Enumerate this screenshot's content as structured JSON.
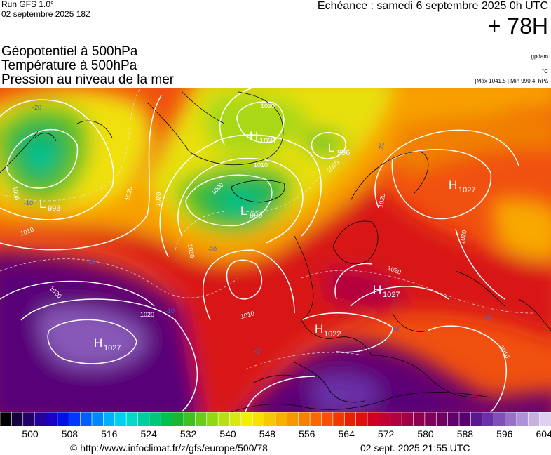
{
  "header": {
    "run_label": "Run GFS 1.0°",
    "run_date": "02 septembre 2025 18Z",
    "echeance": "Echéance : samedi 6 septembre 2025 0h UTC",
    "forecast_hour": "+ 78H"
  },
  "titles": {
    "line1": "Géopotentiel à 500hPa",
    "line2": "Température à 500hPa",
    "line3": "Pression au niveau de la mer"
  },
  "units": {
    "geopotential": "gpdam",
    "temperature": "°C",
    "pressure_range": "[Max 1041.5 | Min 990.4] hPa"
  },
  "pressure_centers": [
    {
      "type": "H",
      "value": "1027",
      "label": "azores-high"
    },
    {
      "type": "L",
      "value": "993",
      "label": "west-atlantic-low"
    },
    {
      "type": "L",
      "value": "990",
      "label": "iceland-low"
    },
    {
      "type": "H",
      "value": "1031",
      "label": "greenland-high"
    },
    {
      "type": "L",
      "value": "996",
      "label": "norwegian-sea-low"
    },
    {
      "type": "H",
      "value": "1027",
      "label": "russia-high"
    },
    {
      "type": "H",
      "value": "1027",
      "label": "central-europe-high"
    },
    {
      "type": "H",
      "value": "1022",
      "label": "mediterranean-high"
    }
  ],
  "isobar_labels": [
    "1000",
    "1010",
    "1020",
    "1030",
    "1000",
    "1010",
    "1020",
    "1010",
    "1020",
    "1020",
    "1020",
    "1010",
    "1010",
    "1020",
    "1020",
    "1010"
  ],
  "isotherm_labels": [
    "-20",
    "-20",
    "-10",
    "-20",
    "-10",
    "-10",
    "-10",
    "-10",
    "-10"
  ],
  "legend": {
    "ticks": [
      "500",
      "508",
      "516",
      "524",
      "532",
      "540",
      "548",
      "556",
      "564",
      "572",
      "580",
      "588",
      "596",
      "604"
    ],
    "colors": [
      "#000000",
      "#14003d",
      "#230066",
      "#25009a",
      "#1a00c4",
      "#0010e6",
      "#0038ff",
      "#0060ff",
      "#0088ff",
      "#00b0ff",
      "#00d0f0",
      "#00d8c8",
      "#00d0a0",
      "#00c878",
      "#00c050",
      "#1ab830",
      "#40c020",
      "#68cc18",
      "#90d810",
      "#b8e010",
      "#d8e810",
      "#f0f000",
      "#f8e000",
      "#f8c800",
      "#f8b000",
      "#f89800",
      "#f88000",
      "#f86800",
      "#f85000",
      "#f03800",
      "#e82000",
      "#e01010",
      "#d00020",
      "#c00030",
      "#b00040",
      "#a00048",
      "#900050",
      "#800058",
      "#700060",
      "#600068",
      "#580070",
      "#5a1890",
      "#6a30a8",
      "#8050b8",
      "#9870c8",
      "#b090d8",
      "#c8b0e0",
      "#e0d0f0"
    ]
  },
  "footer": {
    "source_url": "© http://www.infoclimat.fr/z/gfs/europe/500/78",
    "generated": "02 sept. 2025 21:55 UTC"
  },
  "colors": {
    "isoline": "#ffffff",
    "coast": "#000000"
  }
}
